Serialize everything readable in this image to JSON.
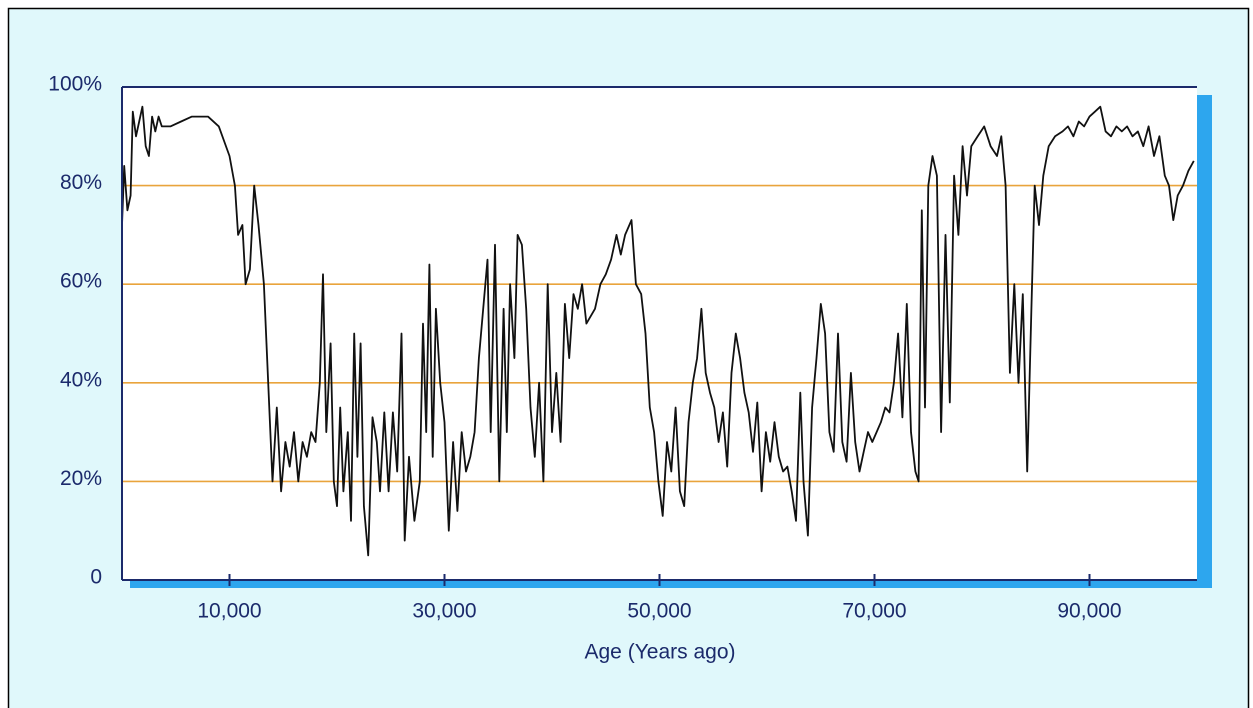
{
  "chart_data": {
    "type": "line",
    "xlabel": "Age (Years ago)",
    "color": "#111111",
    "xlim": [
      0,
      100000
    ],
    "xticks": [
      {
        "value": 10000,
        "label": "10,000"
      },
      {
        "value": 30000,
        "label": "30,000"
      },
      {
        "value": 50000,
        "label": "50,000"
      },
      {
        "value": 70000,
        "label": "70,000"
      },
      {
        "value": 90000,
        "label": "90,000"
      }
    ],
    "ylim": [
      0,
      100
    ],
    "yticks": [
      0,
      {
        "value": 20,
        "label": "20%"
      },
      {
        "value": 40,
        "label": "40%"
      },
      {
        "value": 60,
        "label": "60%"
      },
      {
        "value": 80,
        "label": "80%"
      },
      {
        "value": 100,
        "label": "100%"
      }
    ],
    "grid": true,
    "x": [
      0,
      200,
      500,
      800,
      1000,
      1300,
      1600,
      1900,
      2200,
      2500,
      2800,
      3100,
      3400,
      3700,
      4500,
      5500,
      6500,
      8000,
      9000,
      10000,
      10500,
      10800,
      11200,
      11500,
      11900,
      12300,
      12700,
      13200,
      13600,
      14000,
      14400,
      14800,
      15200,
      15600,
      16000,
      16400,
      16800,
      17200,
      17600,
      18000,
      18400,
      18700,
      19000,
      19400,
      19700,
      20000,
      20300,
      20600,
      21000,
      21300,
      21600,
      21900,
      22200,
      22500,
      22900,
      23300,
      23700,
      24000,
      24400,
      24800,
      25200,
      25600,
      26000,
      26300,
      26700,
      27200,
      27700,
      28000,
      28300,
      28600,
      28900,
      29200,
      29600,
      30000,
      30400,
      30800,
      31200,
      31600,
      32000,
      32400,
      32800,
      33200,
      33600,
      34000,
      34300,
      34700,
      35100,
      35500,
      35800,
      36100,
      36500,
      36800,
      37200,
      37600,
      38000,
      38400,
      38800,
      39200,
      39600,
      40000,
      40400,
      40800,
      41200,
      41600,
      42000,
      42400,
      42800,
      43200,
      44000,
      44500,
      45000,
      45500,
      46000,
      46400,
      46800,
      47400,
      47800,
      48300,
      48700,
      49100,
      49500,
      49900,
      50300,
      50700,
      51100,
      51500,
      51900,
      52300,
      52700,
      53100,
      53500,
      53900,
      54300,
      54700,
      55100,
      55500,
      55900,
      56300,
      56700,
      57100,
      57500,
      57900,
      58300,
      58700,
      59100,
      59500,
      59900,
      60300,
      60700,
      61100,
      61500,
      61900,
      62300,
      62700,
      63100,
      63400,
      63800,
      64200,
      64600,
      65000,
      65400,
      65800,
      66200,
      66600,
      67000,
      67400,
      67800,
      68200,
      68600,
      69000,
      69400,
      69800,
      70200,
      70600,
      71000,
      71400,
      71800,
      72200,
      72600,
      73000,
      73400,
      73800,
      74100,
      74400,
      74700,
      75000,
      75400,
      75800,
      76200,
      76600,
      77000,
      77400,
      77800,
      78200,
      78600,
      79000,
      79600,
      80200,
      80800,
      81400,
      81800,
      82200,
      82600,
      83000,
      83400,
      83800,
      84200,
      84600,
      84900,
      85300,
      85700,
      86200,
      86800,
      87500,
      88000,
      88500,
      89000,
      89500,
      90000,
      90500,
      91000,
      91500,
      92000,
      92500,
      93000,
      93500,
      94000,
      94500,
      95000,
      95500,
      96000,
      96500,
      97000,
      97400,
      97800,
      98200,
      98700,
      99200,
      99700
    ],
    "values": [
      72,
      84,
      75,
      78,
      95,
      90,
      93,
      96,
      88,
      86,
      94,
      91,
      94,
      92,
      92,
      93,
      94,
      94,
      92,
      86,
      80,
      70,
      72,
      60,
      63,
      80,
      72,
      60,
      40,
      20,
      35,
      18,
      28,
      23,
      30,
      20,
      28,
      25,
      30,
      28,
      40,
      62,
      30,
      48,
      20,
      15,
      35,
      18,
      30,
      12,
      50,
      25,
      48,
      15,
      5,
      33,
      28,
      18,
      34,
      18,
      34,
      22,
      50,
      8,
      25,
      12,
      20,
      52,
      30,
      64,
      25,
      55,
      40,
      32,
      10,
      28,
      14,
      30,
      22,
      25,
      30,
      45,
      55,
      65,
      30,
      68,
      20,
      55,
      30,
      60,
      45,
      70,
      68,
      55,
      35,
      25,
      40,
      20,
      60,
      30,
      42,
      28,
      56,
      45,
      58,
      55,
      60,
      52,
      55,
      60,
      62,
      65,
      70,
      66,
      70,
      73,
      60,
      58,
      50,
      35,
      30,
      20,
      13,
      28,
      22,
      35,
      18,
      15,
      32,
      40,
      45,
      55,
      42,
      38,
      35,
      28,
      34,
      23,
      42,
      50,
      45,
      38,
      34,
      26,
      36,
      18,
      30,
      24,
      32,
      25,
      22,
      23,
      18,
      12,
      38,
      20,
      9,
      35,
      45,
      56,
      50,
      30,
      26,
      50,
      28,
      24,
      42,
      28,
      22,
      26,
      30,
      28,
      30,
      32,
      35,
      34,
      40,
      50,
      33,
      56,
      30,
      22,
      20,
      75,
      35,
      80,
      86,
      82,
      30,
      70,
      36,
      82,
      70,
      88,
      78,
      88,
      90,
      92,
      88,
      86,
      90,
      80,
      42,
      60,
      40,
      58,
      22,
      55,
      80,
      72,
      82,
      88,
      90,
      91,
      92,
      90,
      93,
      92,
      94,
      95,
      96,
      91,
      90,
      92,
      91,
      92,
      90,
      91,
      88,
      92,
      86,
      90,
      82,
      80,
      73,
      78,
      80,
      83,
      85
    ]
  }
}
